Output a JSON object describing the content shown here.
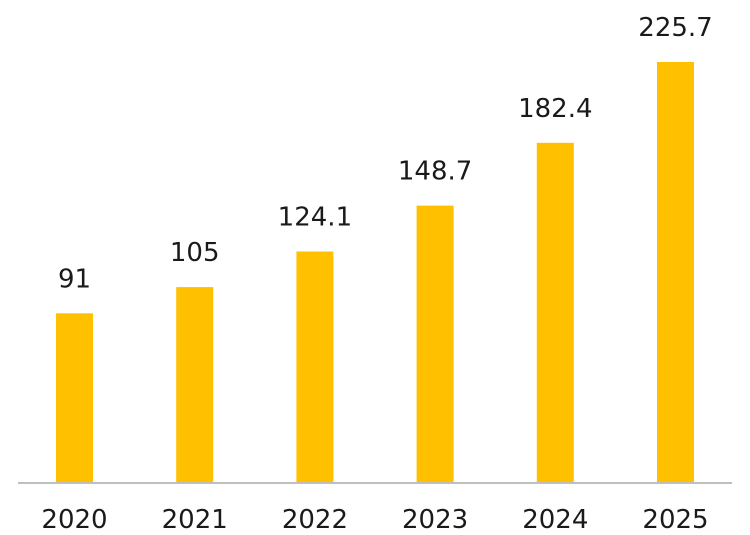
{
  "chart_data": {
    "type": "bar",
    "categories": [
      "2020",
      "2021",
      "2022",
      "2023",
      "2024",
      "2025"
    ],
    "values": [
      91,
      105,
      124.1,
      148.7,
      182.4,
      225.7
    ],
    "data_labels": [
      "91",
      "105",
      "124.1",
      "148.7",
      "182.4",
      "225.7"
    ],
    "ylim": [
      0,
      225.7
    ],
    "grid": false,
    "legend": "none",
    "colors": {
      "bar": "#FFC000",
      "axis": "#BFBFBF",
      "text": "#1a1a1a"
    }
  }
}
